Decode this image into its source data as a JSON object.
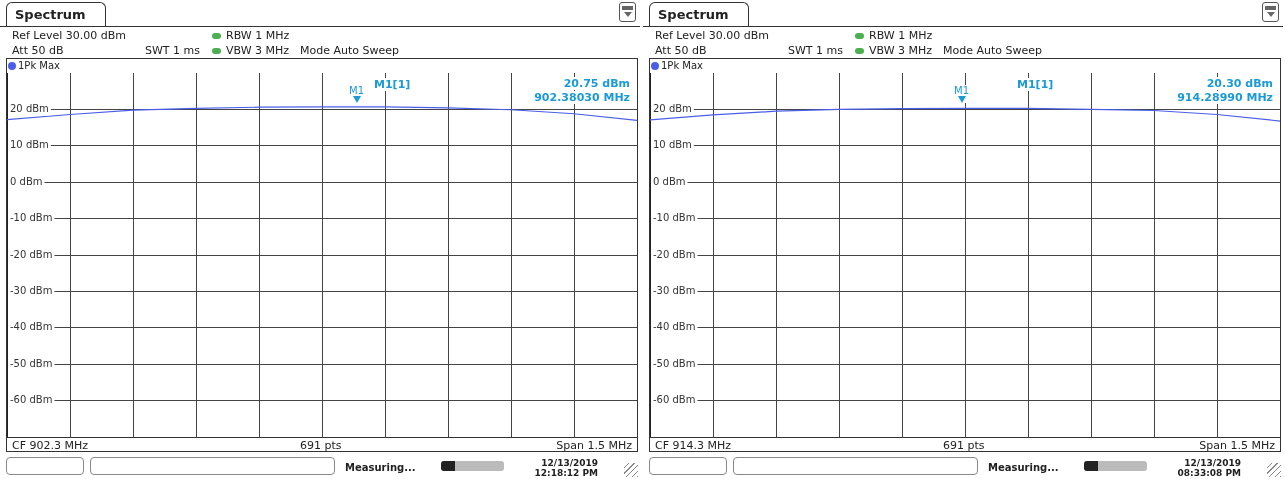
{
  "chart_data": [
    {
      "type": "line",
      "title": "Spectrum",
      "categories": [
        null,
        null,
        null,
        null,
        null,
        null,
        null,
        null,
        null,
        null,
        null
      ],
      "series": [
        {
          "name": "1Pk Max",
          "color": "#4a5ee8",
          "values": [
            17.2,
            18.6,
            19.8,
            20.3,
            20.6,
            20.7,
            20.7,
            20.4,
            19.9,
            18.8,
            17.0
          ]
        }
      ],
      "ylim": [
        -70,
        30
      ],
      "yticks": [
        {
          "value": 20,
          "label": "20 dBm"
        },
        {
          "value": 10,
          "label": "10 dBm"
        },
        {
          "value": 0,
          "label": "0 dBm"
        },
        {
          "value": -10,
          "label": "-10 dBm"
        },
        {
          "value": -20,
          "label": "-20 dBm"
        },
        {
          "value": -30,
          "label": "-30 dBm"
        },
        {
          "value": -40,
          "label": "-40 dBm"
        },
        {
          "value": -50,
          "label": "-50 dBm"
        },
        {
          "value": -60,
          "label": "-60 dBm"
        }
      ],
      "grid": true,
      "legend": "top left",
      "tick_labels": "y",
      "marker": "none",
      "annotations": [
        "Ref Level 30.00 dBm",
        "Att 50 dB",
        "SWT 1 ms",
        "RBW 1 MHz",
        "VBW 3 MHz",
        "Mode Auto Sweep",
        "M1[1]",
        "20.75 dBm",
        "902.38030 MHz",
        "CF 902.3 MHz",
        "691 pts",
        "Span 1.5 MHz",
        "Measuring...",
        "12/13/2019",
        "12:18:12 PM",
        "M1"
      ]
    },
    {
      "type": "line",
      "title": "Spectrum",
      "categories": [
        null,
        null,
        null,
        null,
        null,
        null,
        null,
        null,
        null,
        null,
        null
      ],
      "series": [
        {
          "name": "1Pk Max",
          "color": "#4a5ee8",
          "values": [
            17.1,
            18.5,
            19.5,
            20.0,
            20.2,
            20.3,
            20.3,
            20.0,
            19.7,
            18.6,
            16.8
          ]
        }
      ],
      "ylim": [
        -70,
        30
      ],
      "yticks": [
        {
          "value": 20,
          "label": "20 dBm"
        },
        {
          "value": 10,
          "label": "10 dBm"
        },
        {
          "value": 0,
          "label": "0 dBm"
        },
        {
          "value": -10,
          "label": "-10 dBm"
        },
        {
          "value": -20,
          "label": "-20 dBm"
        },
        {
          "value": -30,
          "label": "-30 dBm"
        },
        {
          "value": -40,
          "label": "-40 dBm"
        },
        {
          "value": -50,
          "label": "-50 dBm"
        },
        {
          "value": -60,
          "label": "-60 dBm"
        }
      ],
      "grid": true,
      "legend": "top left",
      "tick_labels": "y",
      "marker": "none",
      "annotations": [
        "Ref Level 30.00 dBm",
        "Att 50 dB",
        "SWT 1 ms",
        "RBW 1 MHz",
        "VBW 3 MHz",
        "Mode Auto Sweep",
        "M1[1]",
        "20.30 dBm",
        "914.28990 MHz",
        "CF 914.3 MHz",
        "691 pts",
        "Span 1.5 MHz",
        "Measuring...",
        "12/13/2019",
        "08:33:08 PM",
        "M1"
      ]
    }
  ]
}
